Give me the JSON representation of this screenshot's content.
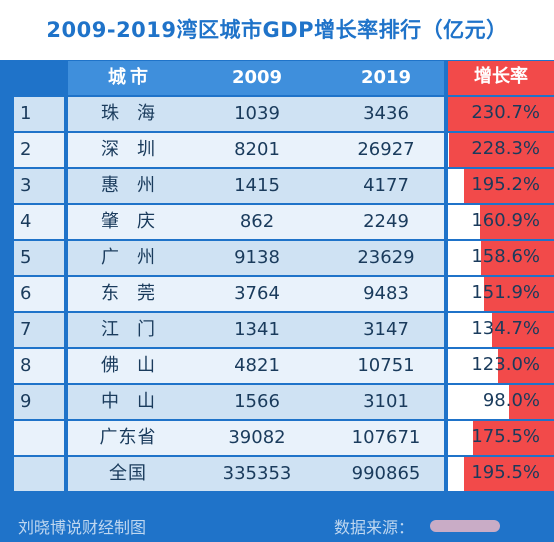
{
  "title": "2009-2019湾区城市GDP增长率排行（亿元）",
  "footer": {
    "left": "刘晓博说财经制图",
    "right": "数据来源："
  },
  "columns": {
    "rank": "",
    "city": "城市",
    "y2009": "2009",
    "y2019": "2019",
    "rate": "增长率"
  },
  "rows": [
    {
      "rank": "1",
      "city": "珠海",
      "y2009": "1039",
      "y2019": "3436",
      "rate": "230.7%",
      "rate_value": 230.7
    },
    {
      "rank": "2",
      "city": "深圳",
      "y2009": "8201",
      "y2019": "26927",
      "rate": "228.3%",
      "rate_value": 228.3
    },
    {
      "rank": "3",
      "city": "惠州",
      "y2009": "1415",
      "y2019": "4177",
      "rate": "195.2%",
      "rate_value": 195.2
    },
    {
      "rank": "4",
      "city": "肇庆",
      "y2009": "862",
      "y2019": "2249",
      "rate": "160.9%",
      "rate_value": 160.9
    },
    {
      "rank": "5",
      "city": "广州",
      "y2009": "9138",
      "y2019": "23629",
      "rate": "158.6%",
      "rate_value": 158.6
    },
    {
      "rank": "6",
      "city": "东莞",
      "y2009": "3764",
      "y2019": "9483",
      "rate": "151.9%",
      "rate_value": 151.9
    },
    {
      "rank": "7",
      "city": "江门",
      "y2009": "1341",
      "y2019": "3147",
      "rate": "134.7%",
      "rate_value": 134.7
    },
    {
      "rank": "8",
      "city": "佛山",
      "y2009": "4821",
      "y2019": "10751",
      "rate": "123.0%",
      "rate_value": 123.0
    },
    {
      "rank": "9",
      "city": "中山",
      "y2009": "1566",
      "y2019": "3101",
      "rate": "98.0%",
      "rate_value": 98.0
    }
  ],
  "totals": [
    {
      "city": "广东省",
      "y2009": "39082",
      "y2019": "107671",
      "rate": "175.5%",
      "rate_value": 175.5
    },
    {
      "city": "全国",
      "y2009": "335353",
      "y2019": "990865",
      "rate": "195.5%",
      "rate_value": 195.5
    }
  ],
  "colors": {
    "header_bg": "#1f73c9",
    "bar": "#f24a4a",
    "row_light": "#e9f2fb",
    "row_dark": "#cfe2f3"
  },
  "chart_data": {
    "type": "table",
    "title": "2009-2019湾区城市GDP增长率排行（亿元）",
    "columns": [
      "城市",
      "2009",
      "2019",
      "增长率"
    ],
    "rows": [
      [
        "珠海",
        1039,
        3436,
        230.7
      ],
      [
        "深圳",
        8201,
        26927,
        228.3
      ],
      [
        "惠州",
        1415,
        4177,
        195.2
      ],
      [
        "肇庆",
        862,
        2249,
        160.9
      ],
      [
        "广州",
        9138,
        23629,
        158.6
      ],
      [
        "东莞",
        3764,
        9483,
        151.9
      ],
      [
        "江门",
        1341,
        3147,
        134.7
      ],
      [
        "佛山",
        4821,
        10751,
        123.0
      ],
      [
        "中山",
        1566,
        3101,
        98.0
      ],
      [
        "广东省",
        39082,
        107671,
        175.5
      ],
      [
        "全国",
        335353,
        990865,
        195.5
      ]
    ],
    "rate_bar_max": 230.7
  }
}
